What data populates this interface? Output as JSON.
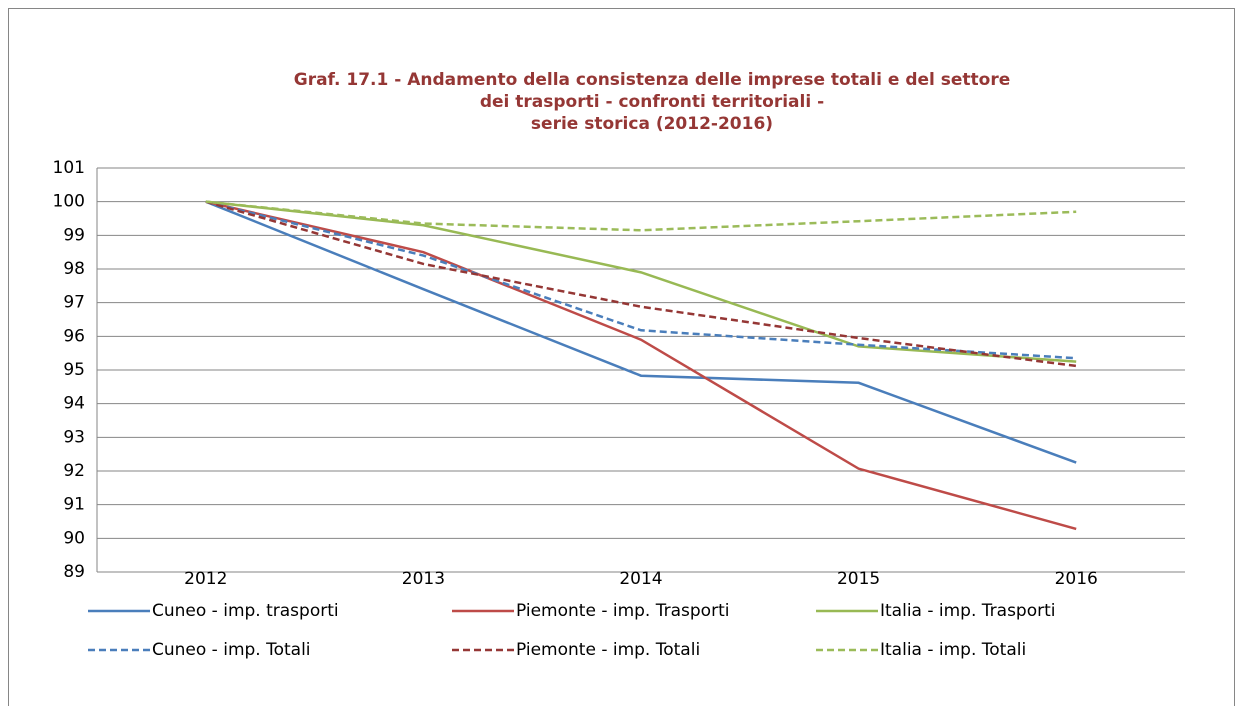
{
  "chart_data": {
    "type": "line",
    "title": [
      "Graf. 17.1 - Andamento della consistenza delle imprese totali e del settore",
      "dei trasporti - confronti territoriali -",
      "serie storica (2012-2016)"
    ],
    "categories": [
      "2012",
      "2013",
      "2014",
      "2015",
      "2016"
    ],
    "series": [
      {
        "name": "Cuneo - imp. trasporti",
        "color": "#4a7ebb",
        "dashed": false,
        "values": [
          100,
          97.4,
          94.83,
          94.62,
          92.25
        ]
      },
      {
        "name": "Piemonte - imp. Trasporti",
        "color": "#be4b48",
        "dashed": false,
        "values": [
          100,
          98.5,
          95.9,
          92.07,
          90.28
        ]
      },
      {
        "name": "Italia - imp. Trasporti",
        "color": "#98b954",
        "dashed": false,
        "values": [
          100,
          99.3,
          97.9,
          95.7,
          95.25
        ]
      },
      {
        "name": "Cuneo - imp. Totali",
        "color": "#4a7ebb",
        "dashed": true,
        "values": [
          100,
          98.4,
          96.18,
          95.75,
          95.35
        ]
      },
      {
        "name": "Piemonte - imp. Totali",
        "color": "#953735",
        "dashed": true,
        "values": [
          100,
          98.15,
          96.88,
          95.95,
          95.12
        ]
      },
      {
        "name": "Italia - imp. Totali",
        "color": "#9bbb59",
        "dashed": true,
        "values": [
          100,
          99.35,
          99.15,
          99.42,
          99.7
        ]
      }
    ],
    "ylim": [
      89,
      101
    ],
    "yticks": [
      89,
      90,
      91,
      92,
      93,
      94,
      95,
      96,
      97,
      98,
      99,
      100,
      101
    ],
    "grid": true,
    "legend": "bottom"
  }
}
